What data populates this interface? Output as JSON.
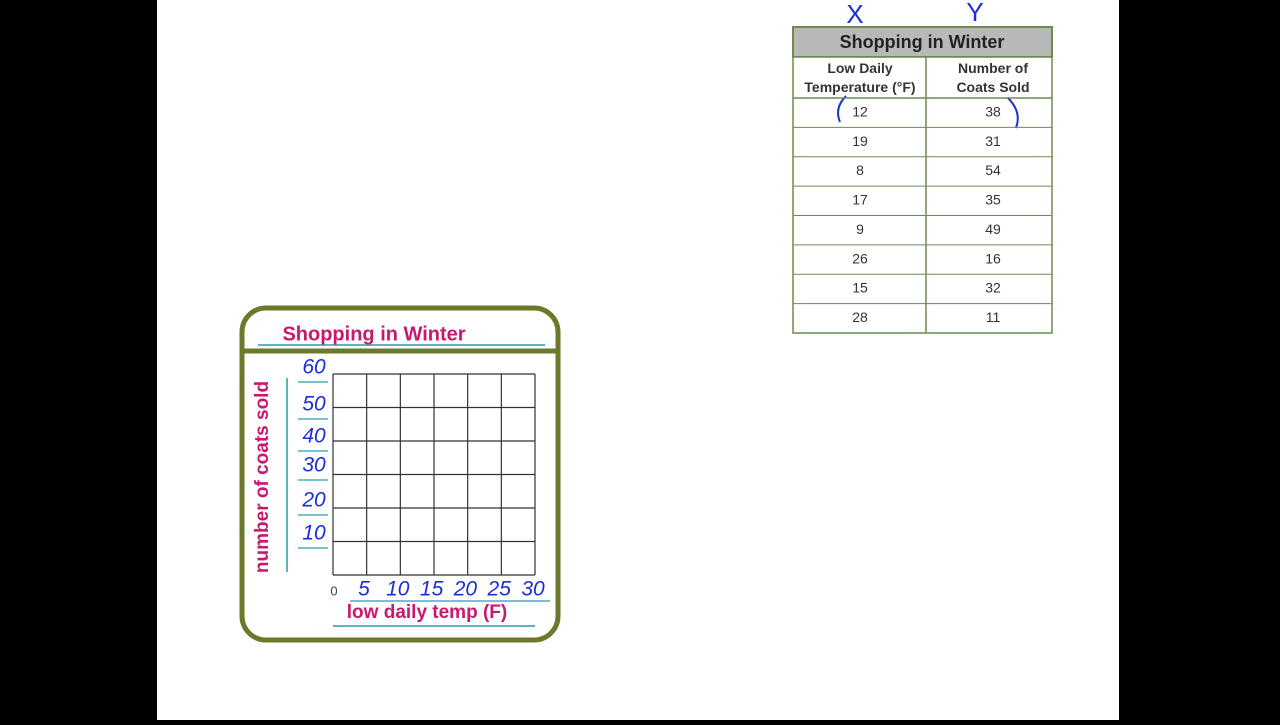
{
  "table": {
    "title": "Shopping in Winter",
    "headers": [
      "Low Daily Temperature (°F)",
      "Number of Coats Sold"
    ],
    "rows": [
      [
        12,
        38
      ],
      [
        19,
        31
      ],
      [
        8,
        54
      ],
      [
        17,
        35
      ],
      [
        9,
        49
      ],
      [
        26,
        16
      ],
      [
        15,
        32
      ],
      [
        28,
        11
      ]
    ],
    "annotations": [
      "X",
      "Y"
    ]
  },
  "graph": {
    "title": "Shopping in Winter",
    "y_label": "number of coats sold",
    "x_label": "low daily temp (F)",
    "origin_label": "0",
    "y_tick_labels": [
      "60",
      "50",
      "40",
      "30",
      "20",
      "10"
    ],
    "x_tick_labels": [
      "5",
      "10",
      "15",
      "20",
      "25",
      "30"
    ]
  }
}
